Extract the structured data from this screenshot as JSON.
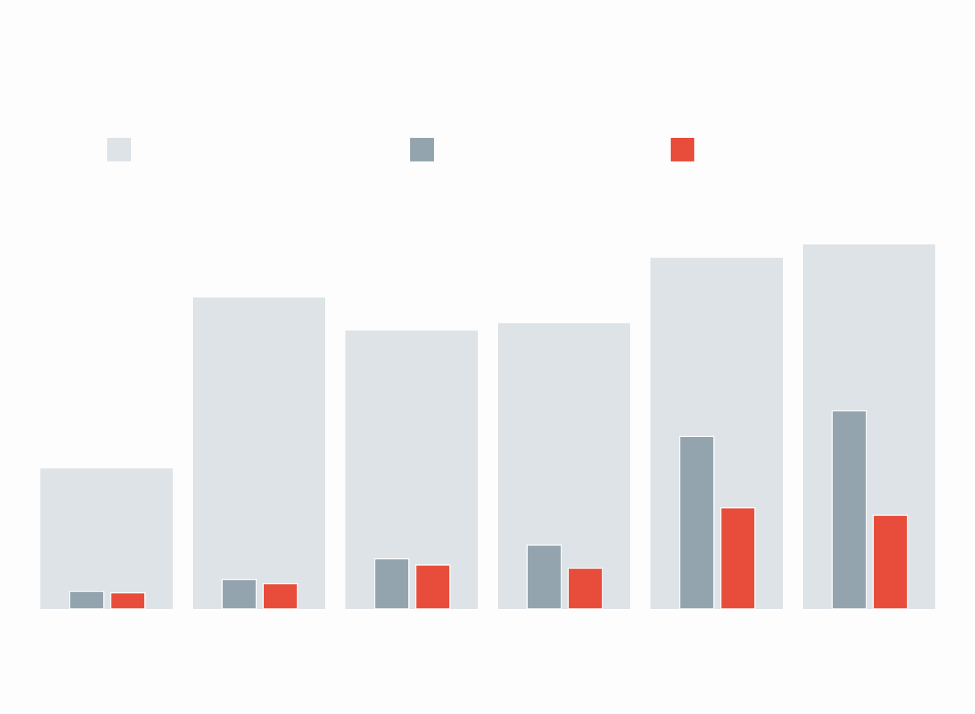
{
  "chart_data": {
    "type": "bar",
    "title": "",
    "xlabel": "",
    "ylabel": "",
    "categories": [
      "",
      "",
      "",
      "",
      "",
      ""
    ],
    "ylim": [
      0,
      100
    ],
    "grid": false,
    "legend_position": "top",
    "series": [
      {
        "color": "#dde3e7",
        "role": "background",
        "values": [
          40,
          88.7,
          79.3,
          81.4,
          100,
          103.8
        ]
      },
      {
        "color": "#94a4ae",
        "role": "inner-left",
        "values": [
          5,
          8.4,
          14.3,
          18.2,
          49.1,
          56.4
        ]
      },
      {
        "color": "#e84c3a",
        "role": "inner-right",
        "values": [
          4.6,
          7.2,
          12.5,
          11.6,
          28.8,
          26.7
        ]
      }
    ]
  }
}
